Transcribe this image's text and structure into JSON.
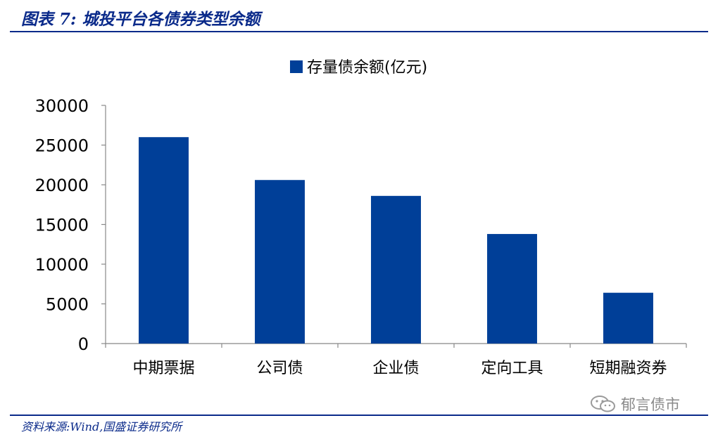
{
  "header": {
    "title": "图表 7:  城投平台各债券类型余额"
  },
  "footer": {
    "source": "资料来源:Wind,国盛证券研究所",
    "watermark": "郁言债市",
    "watermark_icon": "wechat-icon"
  },
  "colors": {
    "bar": "#003F98",
    "rule": "#0a2a8a",
    "axis": "#888888"
  },
  "chart_data": {
    "type": "bar",
    "categories": [
      "中期票据",
      "公司债",
      "企业债",
      "定向工具",
      "短期融资券"
    ],
    "series": [
      {
        "name": "存量债余额(亿元)",
        "values": [
          26000,
          20600,
          18600,
          13800,
          6400
        ]
      }
    ],
    "ylim": [
      0,
      30000
    ],
    "yticks": [
      0,
      5000,
      10000,
      15000,
      20000,
      25000,
      30000
    ],
    "legend_position": "top-center",
    "grid": false
  }
}
